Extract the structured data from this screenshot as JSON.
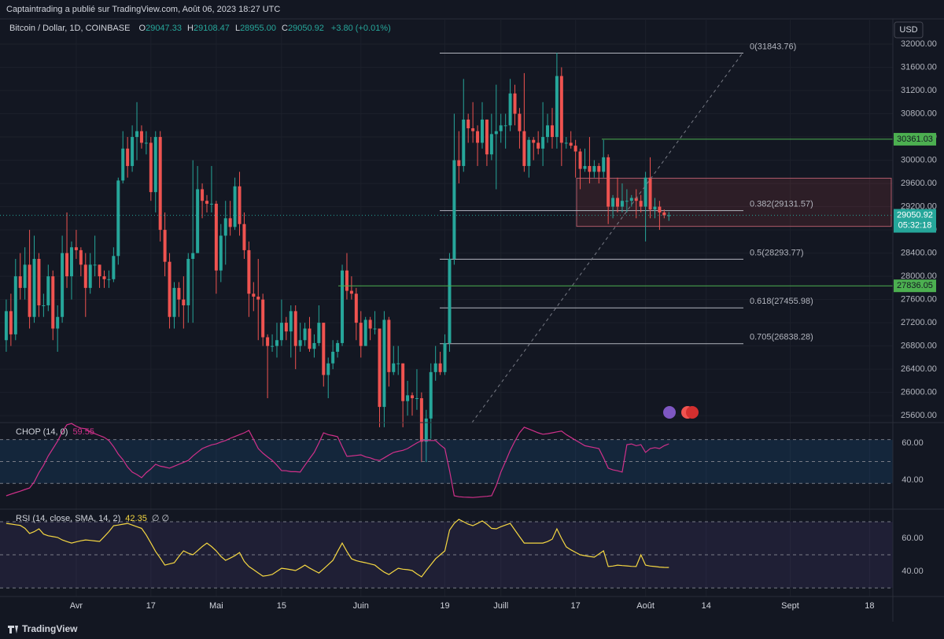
{
  "header": {
    "publisher": "Captaintrading a publié sur TradingView.com, Août 06, 2023 18:27 UTC",
    "footer": "TradingView",
    "currency": "USD"
  },
  "chart_data": {
    "type": "candlestick",
    "symbol": "Bitcoin / Dollar, 1D, COINBASE",
    "ohlc_legend": [
      {
        "key": "O",
        "value": "29047.33"
      },
      {
        "key": "H",
        "value": "29108.47"
      },
      {
        "key": "L",
        "value": "28955.00"
      },
      {
        "key": "C",
        "value": "29050.92"
      }
    ],
    "change": "+3.80 (+0.01%)",
    "up_color": "#26a69a",
    "down_color": "#ef5350",
    "grid": true,
    "xlim": [
      -1,
      190
    ],
    "xticks": [
      {
        "value": 15,
        "label": "Avr"
      },
      {
        "value": 31,
        "label": "17"
      },
      {
        "value": 45,
        "label": "Mai"
      },
      {
        "value": 59,
        "label": "15"
      },
      {
        "value": 76,
        "label": "Juin"
      },
      {
        "value": 94,
        "label": "19"
      },
      {
        "value": 106,
        "label": "Juill"
      },
      {
        "value": 122,
        "label": "17"
      },
      {
        "value": 137,
        "label": "Août"
      },
      {
        "value": 150,
        "label": "14"
      },
      {
        "value": 168,
        "label": "Sept"
      },
      {
        "value": 185,
        "label": "18"
      }
    ],
    "ylim": [
      25480,
      32380
    ],
    "yticks": [
      {
        "value": 25600,
        "label": "25600.00"
      },
      {
        "value": 26000,
        "label": "26000.00"
      },
      {
        "value": 26400,
        "label": "26400.00"
      },
      {
        "value": 26800,
        "label": "26800.00"
      },
      {
        "value": 27200,
        "label": "27200.00"
      },
      {
        "value": 27600,
        "label": "27600.00"
      },
      {
        "value": 28000,
        "label": "28000.00"
      },
      {
        "value": 28400,
        "label": "28400.00"
      },
      {
        "value": 28800,
        "label": "28800.00"
      },
      {
        "value": 29200,
        "label": "29200.00"
      },
      {
        "value": 29600,
        "label": "29600.00"
      },
      {
        "value": 30000,
        "label": "30000.00"
      },
      {
        "value": 30400,
        "label": "30400.00"
      },
      {
        "value": 30800,
        "label": "30800.00"
      },
      {
        "value": 31200,
        "label": "31200.00"
      },
      {
        "value": 31600,
        "label": "31600.00"
      },
      {
        "value": 32000,
        "label": "32000.00"
      }
    ],
    "candles": {
      "open": [
        26900,
        27400,
        27000,
        28000,
        27800,
        28200,
        27300,
        28300,
        27500,
        27500,
        28000,
        27100,
        27300,
        28400,
        28000,
        28500,
        28450,
        28200,
        27800,
        28200,
        28200,
        28000,
        27950,
        27950,
        28350,
        29650,
        30200,
        29900,
        30400,
        30500,
        30300,
        30300,
        29450,
        30400,
        28800,
        28250,
        27300,
        27800,
        27600,
        27500,
        28300,
        28400,
        29500,
        29300,
        29250,
        29250,
        28100,
        28700,
        29000,
        28850,
        29550,
        28900,
        28450,
        27700,
        27650,
        27600,
        26950,
        26800,
        26800,
        26900,
        27200,
        27050,
        27400,
        26800,
        26900,
        27100,
        26750,
        26850,
        27200,
        26300,
        26500,
        26700,
        26850,
        28100,
        27750,
        27700,
        27200,
        26800,
        27250,
        27100,
        27100,
        25750,
        27250,
        26350,
        26500,
        26500,
        25850,
        25950,
        25900,
        25900,
        25150,
        25550,
        26350,
        26500,
        26350,
        26850,
        28300,
        30000,
        29900,
        30700,
        30550,
        30500,
        30300,
        30700,
        30100,
        30450,
        30500,
        30600,
        30600,
        31150,
        30800,
        30500,
        29900,
        30350,
        30300,
        30200,
        30400,
        30600,
        30400,
        31450,
        30300,
        30300,
        30250,
        30150,
        29850,
        29900,
        29800,
        29900,
        29800,
        30050,
        29200,
        29350,
        29200,
        29300,
        29300,
        29350,
        29300,
        29200,
        29700,
        29150,
        29200,
        29100,
        29047
      ],
      "high": [
        27600,
        27700,
        28300,
        28400,
        28500,
        28800,
        28700,
        28400,
        27700,
        28200,
        28100,
        27500,
        28700,
        29100,
        28600,
        28800,
        28500,
        28400,
        28400,
        28700,
        28200,
        28100,
        28100,
        28500,
        29700,
        30500,
        30400,
        30600,
        31000,
        30600,
        30500,
        30400,
        30500,
        30500,
        29100,
        28400,
        27900,
        27900,
        28000,
        28400,
        30000,
        29900,
        29600,
        29400,
        29900,
        29300,
        28900,
        29300,
        29300,
        29700,
        29800,
        29100,
        28600,
        27900,
        28300,
        27700,
        27000,
        27000,
        27200,
        27600,
        27300,
        27500,
        27500,
        27200,
        27200,
        27300,
        27000,
        27500,
        27200,
        26600,
        26900,
        26900,
        28200,
        28400,
        28000,
        27800,
        27400,
        27300,
        27300,
        27400,
        27100,
        27400,
        27300,
        26800,
        26800,
        26500,
        26200,
        26000,
        26400,
        26000,
        25700,
        26500,
        26800,
        26700,
        27000,
        28400,
        30800,
        30500,
        31400,
        30800,
        31000,
        30600,
        31000,
        30700,
        30800,
        31300,
        30800,
        30800,
        31400,
        31300,
        30900,
        31500,
        30400,
        30400,
        30500,
        31000,
        30800,
        30900,
        31850,
        31600,
        30400,
        30500,
        30350,
        30200,
        30200,
        30400,
        30000,
        29950,
        30350,
        30100,
        29400,
        29700,
        29600,
        29500,
        29400,
        29500,
        29400,
        29800,
        30050,
        29350,
        29300,
        29150,
        29108
      ],
      "low": [
        26700,
        26800,
        26900,
        27600,
        27600,
        27100,
        27200,
        27300,
        27300,
        27400,
        26900,
        26700,
        27200,
        27800,
        27600,
        28300,
        28000,
        27300,
        27700,
        28000,
        27800,
        27800,
        27800,
        27900,
        28200,
        29600,
        29700,
        29800,
        30000,
        30200,
        30100,
        29300,
        29100,
        28600,
        28000,
        27100,
        27100,
        27300,
        27100,
        27200,
        27200,
        28400,
        29000,
        29100,
        29100,
        27700,
        27900,
        28200,
        28700,
        28800,
        28700,
        28300,
        27300,
        27400,
        26900,
        26800,
        25900,
        26700,
        26600,
        26800,
        26900,
        26600,
        26400,
        26700,
        26800,
        26700,
        26600,
        26800,
        26100,
        25900,
        26400,
        26600,
        26800,
        27600,
        27600,
        26900,
        26600,
        26800,
        26900,
        27000,
        25400,
        25400,
        26100,
        26300,
        26300,
        25400,
        25600,
        25600,
        25700,
        24800,
        24800,
        25200,
        26200,
        26300,
        26300,
        26700,
        28200,
        29600,
        29800,
        30300,
        30300,
        29900,
        30200,
        29900,
        30000,
        29500,
        30300,
        30200,
        30500,
        30600,
        30200,
        29800,
        29700,
        30000,
        30100,
        29900,
        30300,
        30200,
        30200,
        29900,
        30200,
        30200,
        29700,
        29500,
        29800,
        29600,
        29700,
        29600,
        29700,
        28900,
        29000,
        29100,
        29100,
        29100,
        29200,
        29000,
        29100,
        28600,
        29000,
        29000,
        28800,
        29000,
        28955
      ],
      "close": [
        27400,
        27000,
        28000,
        27800,
        28200,
        27300,
        28300,
        27500,
        27500,
        28000,
        27100,
        27300,
        28400,
        28000,
        28500,
        28450,
        28200,
        27800,
        28200,
        28200,
        28000,
        27950,
        27950,
        28350,
        29650,
        30200,
        29900,
        30400,
        30500,
        30300,
        30300,
        29450,
        30400,
        28800,
        28250,
        27300,
        27800,
        27600,
        27500,
        28300,
        28400,
        29500,
        29300,
        29250,
        29250,
        28100,
        28700,
        29000,
        28850,
        29550,
        28900,
        28450,
        27700,
        27650,
        27600,
        26950,
        26800,
        26800,
        26900,
        27200,
        27050,
        27400,
        26800,
        26900,
        27100,
        26750,
        26850,
        27200,
        26300,
        26500,
        26700,
        26850,
        28100,
        27750,
        27700,
        27200,
        26800,
        27250,
        27100,
        27100,
        25750,
        27250,
        26350,
        26500,
        26500,
        25850,
        25950,
        25900,
        25900,
        25150,
        25550,
        26350,
        26500,
        26350,
        26850,
        28300,
        30000,
        29900,
        30700,
        30550,
        30500,
        30300,
        30700,
        30100,
        30450,
        30500,
        30600,
        30600,
        31150,
        30800,
        30500,
        29900,
        30350,
        30300,
        30200,
        30400,
        30600,
        30400,
        31450,
        30300,
        30300,
        30250,
        30150,
        29850,
        29900,
        29800,
        29900,
        29800,
        30050,
        29200,
        29350,
        29200,
        29300,
        29300,
        29350,
        29300,
        29200,
        29700,
        29150,
        29200,
        29100,
        29050,
        29051
      ]
    },
    "levels": [
      30361.03,
      27836.05
    ],
    "level_color": "#4caf50",
    "last": 29050.92,
    "countdown": "05:32:18",
    "last_color": "#26a69a",
    "zone": {
      "low": 28860,
      "high": 29690
    },
    "fib": [
      {
        "value": 31843.76,
        "label": "0(31843.76)"
      },
      {
        "value": 29131.57,
        "label": "0.382(29131.57)"
      },
      {
        "value": 28293.77,
        "label": "0.5(28293.77)"
      },
      {
        "value": 27455.98,
        "label": "0.618(27455.98)"
      },
      {
        "value": 26838.28,
        "label": "0.705(26838.28)"
      }
    ],
    "indicators": [
      {
        "name": "CHOP (14, 0)",
        "value_label": 59.55,
        "color": "#d0308a",
        "band_color": "rgba(33,150,243,0.12)",
        "ylim": [
          24.3,
          71
        ],
        "yticks": [
          {
            "value": 60,
            "label": "60.00"
          },
          {
            "value": 40,
            "label": "40.00"
          }
        ],
        "levels": [
          61.8,
          50,
          38.2
        ],
        "values": [
          31.5,
          32.4,
          33.2,
          34.0,
          34.9,
          35.7,
          39,
          44,
          48,
          53,
          57,
          61,
          66,
          69.8,
          70.5,
          69,
          68,
          67.7,
          66,
          65,
          64,
          63,
          61.3,
          58,
          54,
          51,
          47,
          44.3,
          43,
          41.3,
          44,
          46,
          48.5,
          47.5,
          47,
          46.4,
          47.5,
          48.5,
          49.5,
          50.6,
          53,
          55,
          57,
          58,
          59,
          59.5,
          60.5,
          61.3,
          62.5,
          63.5,
          64.5,
          65.5,
          66.8,
          62,
          57,
          54.5,
          52.5,
          50.6,
          48,
          45.1,
          45,
          44.5,
          44.5,
          44.3,
          48,
          51.5,
          54.9,
          60,
          65.5,
          64.5,
          64,
          63.4,
          58,
          52.8,
          53,
          53.3,
          53.6,
          52.5,
          52,
          51,
          50.6,
          52,
          53.5,
          54.9,
          55.5,
          56,
          57,
          58.5,
          60,
          61.3,
          61.3,
          61.3,
          61.3,
          59,
          57,
          45,
          31.5,
          31,
          30.8,
          30.7,
          30.6,
          30.8,
          31,
          31.2,
          31.5,
          37,
          44.3,
          50,
          56,
          61,
          65.5,
          68.5,
          67.5,
          66.5,
          65.5,
          64.7,
          65,
          65.5,
          66,
          66.4,
          64.5,
          63,
          61.5,
          60,
          58.5,
          58,
          57.5,
          57,
          52,
          46.4,
          45.5,
          45,
          44.3,
          59.1,
          59.5,
          58.5,
          59.1,
          54.9,
          57,
          57.5,
          57,
          58.5,
          59.55
        ]
      },
      {
        "name": "RSI (14, close, SMA, 14, 2)",
        "value_label": 42.35,
        "extra": "∅ ∅",
        "color": "#f5d742",
        "band_color": "rgba(126,87,194,0.12)",
        "ylim": [
          24.8,
          77.6
        ],
        "yticks": [
          {
            "value": 60,
            "label": "60.00"
          },
          {
            "value": 40,
            "label": "40.00"
          }
        ],
        "levels": [
          70,
          50,
          30
        ],
        "values": [
          69,
          68.6,
          68.2,
          67.8,
          66,
          62.9,
          64,
          65.7,
          62.5,
          61.5,
          61,
          60.5,
          59,
          58,
          57.1,
          57.8,
          58.5,
          59,
          58.7,
          58.4,
          58.1,
          61,
          64,
          67.6,
          68,
          68.5,
          69,
          68,
          67,
          66,
          62,
          57.1,
          52,
          48,
          43.8,
          44.5,
          45.2,
          49,
          52.4,
          51,
          50,
          52.5,
          55,
          57.1,
          55,
          52.4,
          49,
          46.7,
          48,
          49.5,
          51.4,
          46,
          42.9,
          41,
          39,
          37.1,
          37.5,
          38.1,
          40,
          41.9,
          41.5,
          41,
          40.5,
          42,
          43.8,
          42,
          40.5,
          39,
          41.5,
          44,
          46.7,
          52,
          57.1,
          52,
          47.6,
          46.5,
          45.8,
          45.2,
          44.5,
          43.8,
          41.5,
          39.5,
          38.1,
          40,
          41.9,
          41.3,
          41,
          40.5,
          38.5,
          36.7,
          40.5,
          44,
          47.6,
          50,
          52.4,
          65,
          69,
          71.4,
          70,
          68.5,
          67.6,
          69,
          70.5,
          68.5,
          66,
          65.7,
          67,
          68,
          69,
          65,
          61,
          57.1,
          57.1,
          57.1,
          57.1,
          57.1,
          58,
          59.5,
          65.7,
          60,
          54.8,
          53,
          51.5,
          50,
          49.5,
          49,
          48.6,
          50.5,
          52.4,
          42.9,
          43.2,
          43.8,
          43.5,
          43.3,
          43,
          42.9,
          50,
          43.8,
          43.2,
          42.9,
          42.6,
          42.4,
          42.35
        ]
      }
    ]
  }
}
